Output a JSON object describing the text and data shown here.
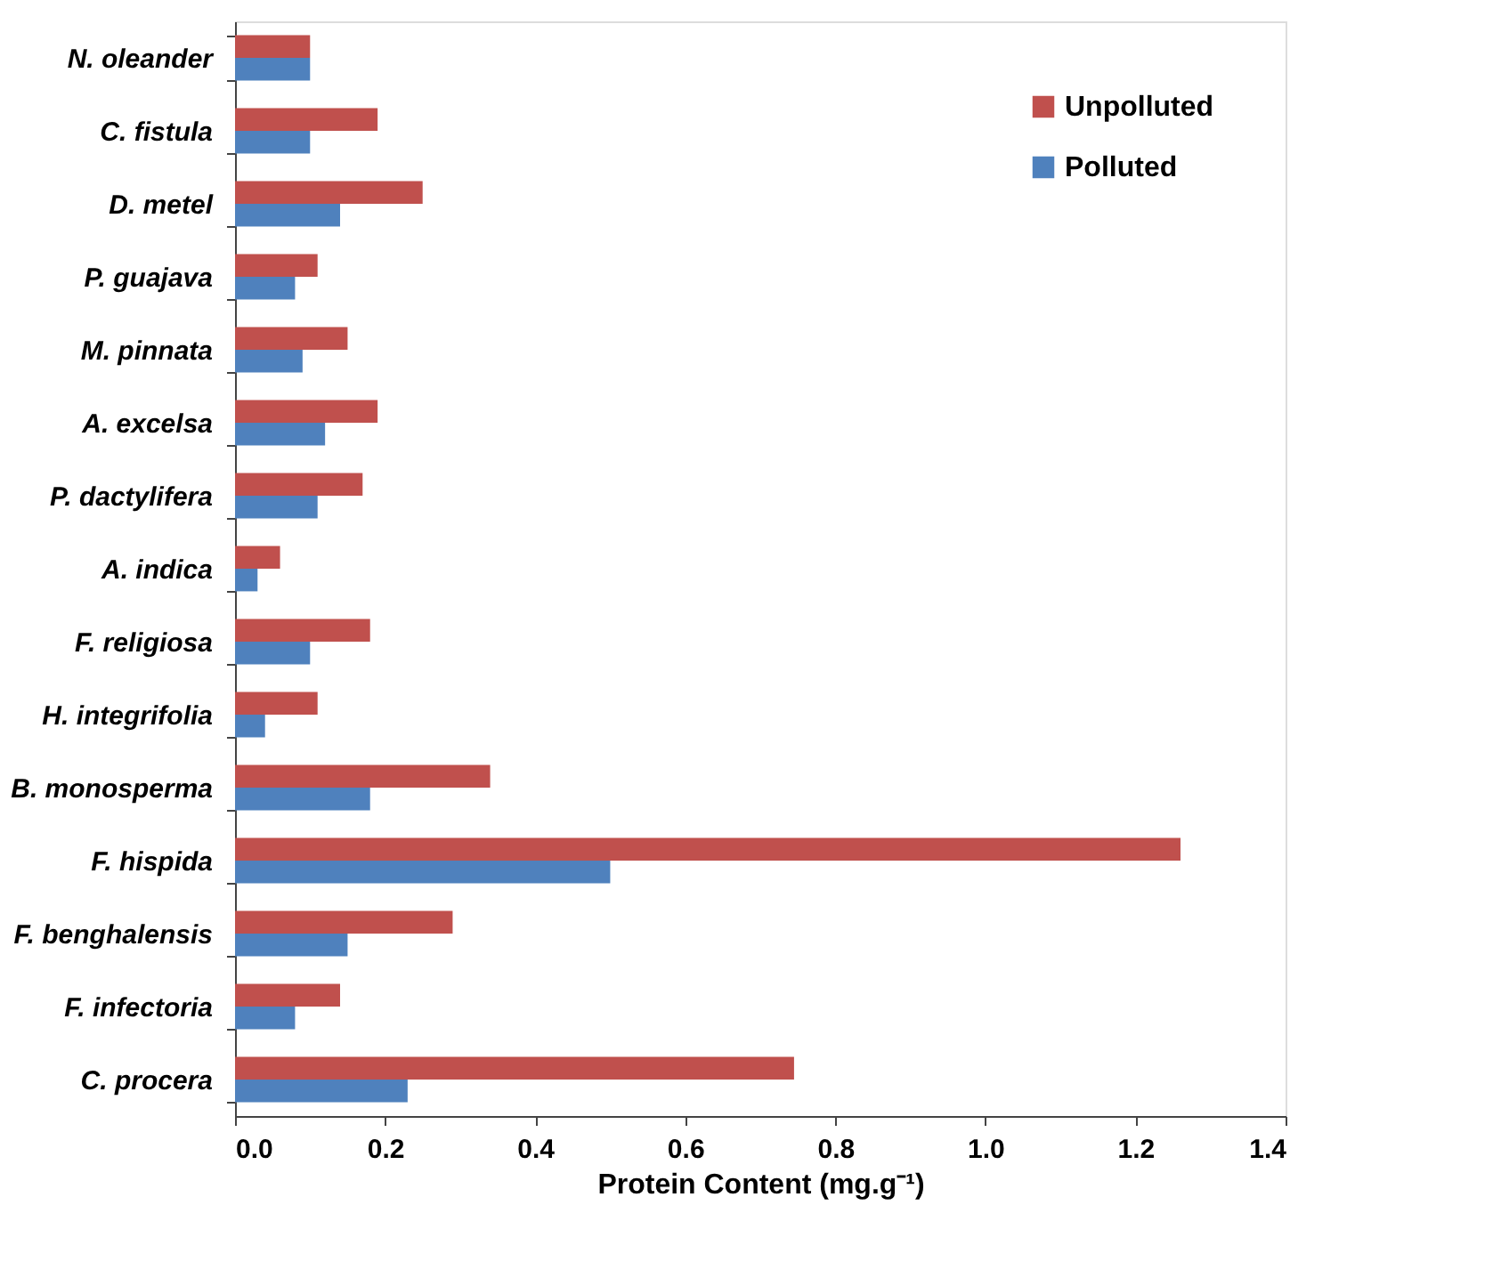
{
  "chart_data": {
    "type": "bar",
    "orientation": "horizontal",
    "xlabel": "Protein Content (mg.g⁻¹)",
    "categories": [
      "N. oleander",
      "C. fistula",
      "D. metel",
      "P. guajava",
      "M. pinnata",
      "A. excelsa",
      "P. dactylifera",
      "A. indica",
      "F. religiosa",
      "H. integrifolia",
      "B. monosperma",
      "F. hispida",
      "F. benghalensis",
      "F. infectoria",
      "C. procera"
    ],
    "series": [
      {
        "name": "Unpolluted",
        "color": "#c0504d",
        "values": [
          0.1,
          0.19,
          0.25,
          0.11,
          0.15,
          0.19,
          0.17,
          0.06,
          0.18,
          0.11,
          0.34,
          1.26,
          0.29,
          0.14,
          0.745
        ]
      },
      {
        "name": "Polluted",
        "color": "#4f81bd",
        "values": [
          0.1,
          0.1,
          0.14,
          0.08,
          0.09,
          0.12,
          0.11,
          0.03,
          0.1,
          0.04,
          0.18,
          0.5,
          0.15,
          0.08,
          0.23
        ]
      }
    ],
    "xlim": [
      0,
      1.4
    ],
    "xticks": [
      {
        "value": 0,
        "label": "0.0"
      },
      {
        "value": 0.2,
        "label": "0.2"
      },
      {
        "value": 0.4,
        "label": "0.4"
      },
      {
        "value": 0.6,
        "label": "0.6"
      },
      {
        "value": 0.8,
        "label": "0.8"
      },
      {
        "value": 1.0,
        "label": "1.0"
      },
      {
        "value": 1.2,
        "label": "1.2"
      },
      {
        "value": 1.4,
        "label": "1.4"
      }
    ],
    "grid": false,
    "legend": "top right"
  }
}
